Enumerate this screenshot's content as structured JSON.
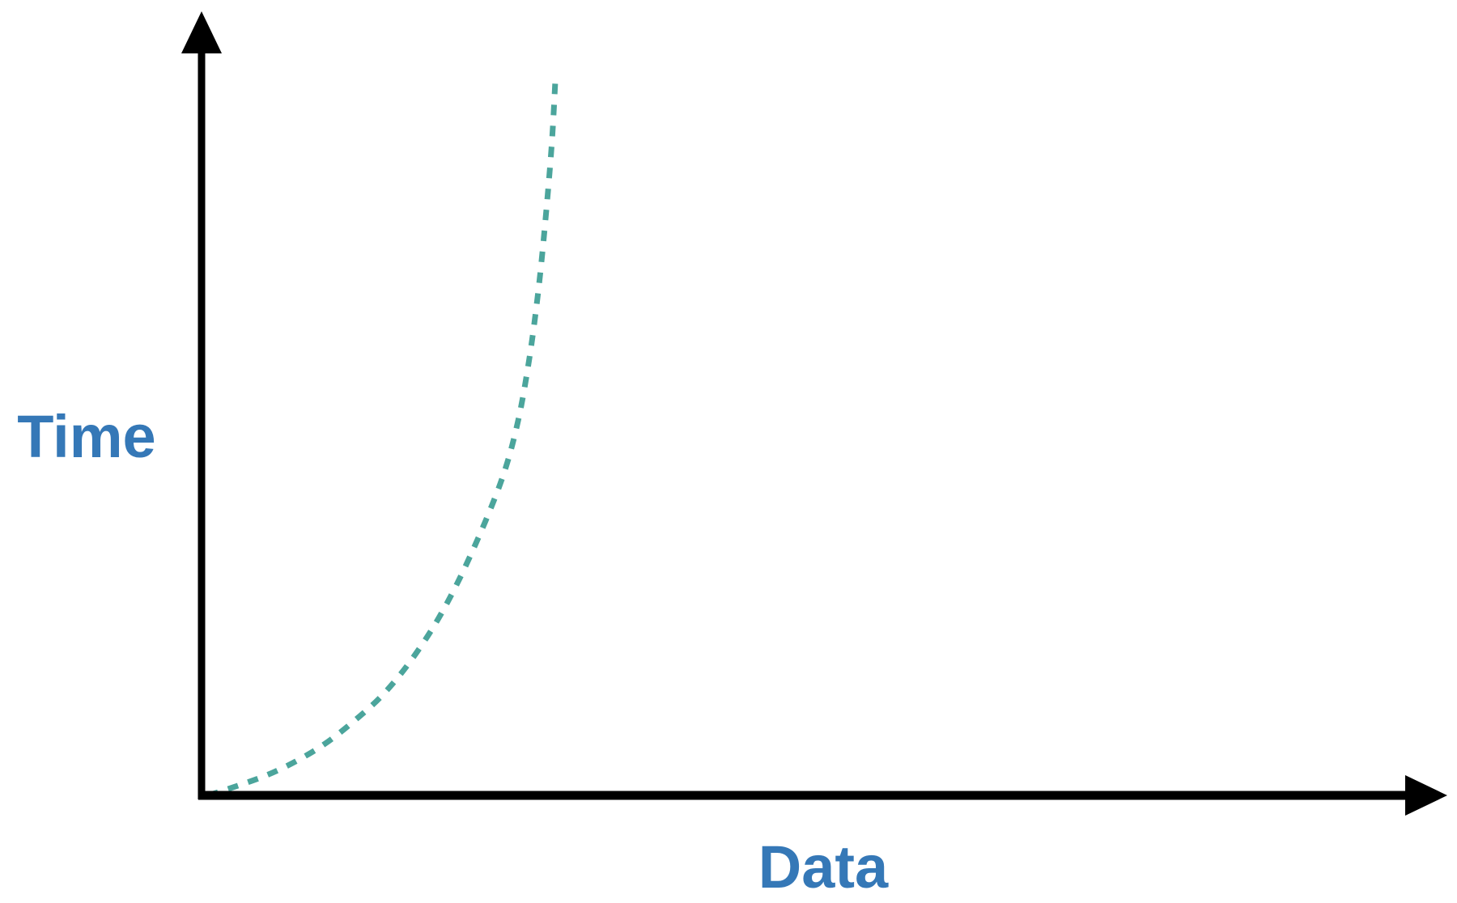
{
  "chart_data": {
    "type": "line",
    "title": "",
    "xlabel": "Data",
    "ylabel": "Time",
    "xlim": [
      0,
      1
    ],
    "ylim": [
      0,
      1
    ],
    "grid": false,
    "legend": "none",
    "ticks": "none",
    "series": [
      {
        "line_style": "dashed",
        "color": "#4ba59c",
        "points": [
          [
            0.0,
            0.0
          ],
          [
            0.024,
            0.013
          ],
          [
            0.049,
            0.028
          ],
          [
            0.073,
            0.047
          ],
          [
            0.097,
            0.071
          ],
          [
            0.121,
            0.102
          ],
          [
            0.146,
            0.14
          ],
          [
            0.17,
            0.189
          ],
          [
            0.194,
            0.251
          ],
          [
            0.218,
            0.33
          ],
          [
            0.243,
            0.43
          ],
          [
            0.257,
            0.51
          ],
          [
            0.267,
            0.6
          ],
          [
            0.275,
            0.7
          ],
          [
            0.281,
            0.8
          ],
          [
            0.286,
            0.9
          ],
          [
            0.289,
            0.99
          ]
        ]
      }
    ]
  },
  "colors": {
    "axis": "#000000",
    "label": "#3578b7",
    "series": "#4ba59c"
  }
}
